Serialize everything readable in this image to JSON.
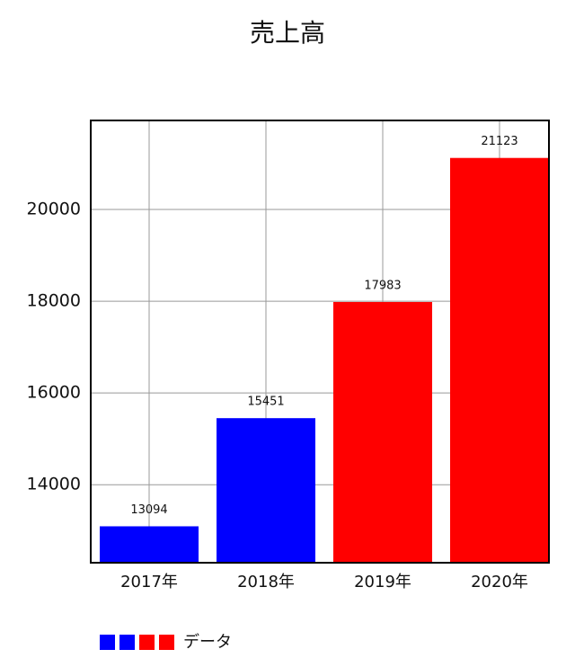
{
  "chart_data": {
    "type": "bar",
    "title": "売上高",
    "categories": [
      "2017年",
      "2018年",
      "2019年",
      "2020年"
    ],
    "series": [
      {
        "name": "データ",
        "colors": [
          "#0000ff",
          "#0000ff",
          "#ff0000",
          "#ff0000"
        ],
        "values": [
          13094,
          15451,
          17983,
          21123
        ]
      }
    ],
    "ylim": [
      12300,
      21940
    ],
    "yticks": [
      14000,
      16000,
      18000,
      20000
    ],
    "grid": true
  }
}
